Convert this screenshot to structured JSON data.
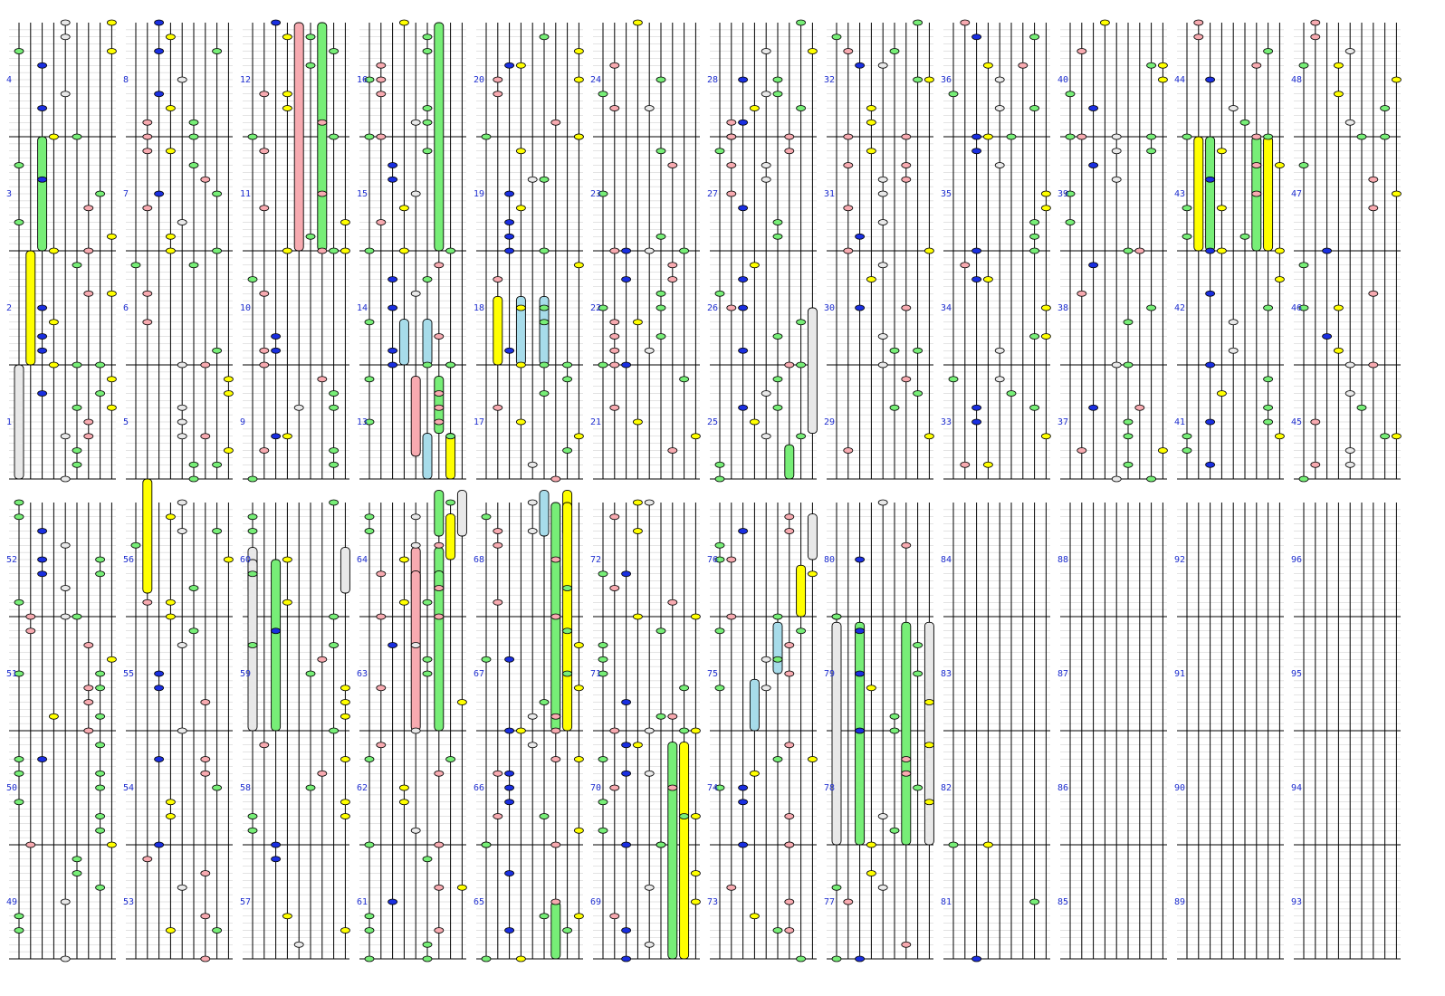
{
  "colors": {
    "background": "#ffffff",
    "line": "#000000",
    "grid": "#c8c8c8",
    "label": "#1f2fd0",
    "green": "#77ee77",
    "yellow": "#ffff00",
    "pink": "#f7aab0",
    "blue": "#1a2fe0",
    "gray": "#e8e8e8",
    "cyan": "#a7dcea"
  },
  "icons": {
    "note": "ellipse-note-icon",
    "hold": "rounded-bar-hold-icon"
  },
  "measure_labels": {
    "top": [
      [
        "4",
        "3",
        "2",
        "1"
      ],
      [
        "8",
        "7",
        "6",
        "5"
      ],
      [
        "12",
        "11",
        "10",
        "9"
      ],
      [
        "16",
        "15",
        "14",
        "13"
      ],
      [
        "20",
        "19",
        "18",
        "17"
      ],
      [
        "24",
        "23",
        "22",
        "21"
      ],
      [
        "28",
        "27",
        "26",
        "25"
      ],
      [
        "32",
        "31",
        "30",
        "29"
      ],
      [
        "36",
        "35",
        "34",
        "33"
      ],
      [
        "40",
        "39",
        "38",
        "37"
      ],
      [
        "44",
        "43",
        "42",
        "41"
      ],
      [
        "48",
        "47",
        "46",
        "45"
      ]
    ],
    "bottom": [
      [
        "52",
        "51",
        "50",
        "49"
      ],
      [
        "56",
        "55",
        "54",
        "53"
      ],
      [
        "60",
        "59",
        "58",
        "57"
      ],
      [
        "64",
        "63",
        "62",
        "61"
      ],
      [
        "68",
        "67",
        "66",
        "65"
      ],
      [
        "72",
        "71",
        "70",
        "69"
      ],
      [
        "76",
        "75",
        "74",
        "73"
      ],
      [
        "80",
        "79",
        "78",
        "77"
      ],
      [
        "84",
        "83",
        "82",
        "81"
      ],
      [
        "88",
        "87",
        "86",
        "85"
      ],
      [
        "92",
        "91",
        "90",
        "89"
      ],
      [
        "96",
        "95",
        "94",
        "93"
      ]
    ]
  },
  "holds": [
    {
      "col": 0,
      "row": 0,
      "lane": 2,
      "color": "green",
      "from": 1,
      "to": 2
    },
    {
      "col": 0,
      "row": 0,
      "lane": 1,
      "color": "yellow",
      "from": 2,
      "to": 3
    },
    {
      "col": 0,
      "row": 0,
      "lane": 0,
      "color": "gray",
      "from": 3,
      "to": 4
    },
    {
      "col": 1,
      "row": 0,
      "lane": 1,
      "color": "yellow",
      "from": 4,
      "to": 5
    },
    {
      "col": 2,
      "row": 0,
      "lane": 4,
      "color": "pink",
      "from": 0,
      "to": 2
    },
    {
      "col": 2,
      "row": 0,
      "lane": 6,
      "color": "green",
      "from": 0,
      "to": 2
    },
    {
      "col": 2,
      "row": 0,
      "lane": 0,
      "color": "gray",
      "from": 4.6,
      "to": 5
    },
    {
      "col": 2,
      "row": 0,
      "lane": 8,
      "color": "gray",
      "from": 4.6,
      "to": 5
    },
    {
      "col": 3,
      "row": 0,
      "lane": 6,
      "color": "green",
      "from": 0,
      "to": 2
    },
    {
      "col": 3,
      "row": 0,
      "lane": 3,
      "color": "cyan",
      "from": 2.6,
      "to": 3
    },
    {
      "col": 3,
      "row": 0,
      "lane": 5,
      "color": "cyan",
      "from": 2.6,
      "to": 3
    },
    {
      "col": 3,
      "row": 0,
      "lane": 4,
      "color": "pink",
      "from": 3.1,
      "to": 3.8
    },
    {
      "col": 3,
      "row": 0,
      "lane": 6,
      "color": "green",
      "from": 3.1,
      "to": 3.6
    },
    {
      "col": 3,
      "row": 0,
      "lane": 5,
      "color": "cyan",
      "from": 3.6,
      "to": 4
    },
    {
      "col": 3,
      "row": 0,
      "lane": 7,
      "color": "yellow",
      "from": 3.6,
      "to": 4
    },
    {
      "col": 3,
      "row": 0,
      "lane": 6,
      "color": "green",
      "from": 4.1,
      "to": 4.5
    },
    {
      "col": 3,
      "row": 0,
      "lane": 8,
      "color": "gray",
      "from": 4.1,
      "to": 4.5
    },
    {
      "col": 3,
      "row": 0,
      "lane": 4,
      "color": "pink",
      "from": 4.6,
      "to": 5
    },
    {
      "col": 3,
      "row": 0,
      "lane": 6,
      "color": "green",
      "from": 4.6,
      "to": 5
    },
    {
      "col": 4,
      "row": 0,
      "lane": 1,
      "color": "yellow",
      "from": 2.4,
      "to": 3
    },
    {
      "col": 4,
      "row": 0,
      "lane": 3,
      "color": "cyan",
      "from": 2.4,
      "to": 3
    },
    {
      "col": 4,
      "row": 0,
      "lane": 5,
      "color": "cyan",
      "from": 2.4,
      "to": 3
    },
    {
      "col": 4,
      "row": 0,
      "lane": 5,
      "color": "cyan",
      "from": 4.1,
      "to": 4.5
    },
    {
      "col": 4,
      "row": 0,
      "lane": 7,
      "color": "yellow",
      "from": 4.1,
      "to": 4.5
    },
    {
      "col": 4,
      "row": 0,
      "lane": 6,
      "color": "green",
      "from": 4.75,
      "to": 5
    },
    {
      "col": 6,
      "row": 0,
      "lane": 8,
      "color": "gray",
      "from": 2.5,
      "to": 3.6
    },
    {
      "col": 6,
      "row": 0,
      "lane": 6,
      "color": "green",
      "from": 3.7,
      "to": 4
    },
    {
      "col": 10,
      "row": 0,
      "lane": 1,
      "color": "yellow",
      "from": 1,
      "to": 2
    },
    {
      "col": 10,
      "row": 0,
      "lane": 2,
      "color": "green",
      "from": 1,
      "to": 2
    },
    {
      "col": 10,
      "row": 0,
      "lane": 6,
      "color": "green",
      "from": 1,
      "to": 2
    },
    {
      "col": 10,
      "row": 0,
      "lane": 7,
      "color": "yellow",
      "from": 1,
      "to": 2
    },
    {
      "col": 2,
      "row": 1,
      "lane": 0,
      "color": "gray",
      "from": 0.5,
      "to": 2
    },
    {
      "col": 2,
      "row": 1,
      "lane": 2,
      "color": "green",
      "from": 0.5,
      "to": 2
    },
    {
      "col": 3,
      "row": 1,
      "lane": 7,
      "color": "yellow",
      "from": 0.1,
      "to": 0.5
    },
    {
      "col": 3,
      "row": 1,
      "lane": 4,
      "color": "pink",
      "from": 0.6,
      "to": 2
    },
    {
      "col": 3,
      "row": 1,
      "lane": 6,
      "color": "green",
      "from": 0.6,
      "to": 2
    },
    {
      "col": 4,
      "row": 1,
      "lane": 6,
      "color": "green",
      "from": 0,
      "to": 2
    },
    {
      "col": 4,
      "row": 1,
      "lane": 7,
      "color": "yellow",
      "from": 0,
      "to": 2
    },
    {
      "col": 4,
      "row": 1,
      "lane": 6,
      "color": "green",
      "from": 3.5,
      "to": 4
    },
    {
      "col": 5,
      "row": 1,
      "lane": 6,
      "color": "green",
      "from": 2.1,
      "to": 4
    },
    {
      "col": 5,
      "row": 1,
      "lane": 7,
      "color": "yellow",
      "from": 2.1,
      "to": 4
    },
    {
      "col": 6,
      "row": 1,
      "lane": 8,
      "color": "gray",
      "from": 0.1,
      "to": 0.5
    },
    {
      "col": 6,
      "row": 1,
      "lane": 7,
      "color": "yellow",
      "from": 0.55,
      "to": 1
    },
    {
      "col": 6,
      "row": 1,
      "lane": 5,
      "color": "cyan",
      "from": 1.05,
      "to": 1.5
    },
    {
      "col": 6,
      "row": 1,
      "lane": 3,
      "color": "cyan",
      "from": 1.55,
      "to": 2
    },
    {
      "col": 7,
      "row": 1,
      "lane": 0,
      "color": "gray",
      "from": 1.05,
      "to": 3
    },
    {
      "col": 7,
      "row": 1,
      "lane": 2,
      "color": "green",
      "from": 1.05,
      "to": 3
    },
    {
      "col": 7,
      "row": 1,
      "lane": 6,
      "color": "green",
      "from": 1.05,
      "to": 3
    },
    {
      "col": 7,
      "row": 1,
      "lane": 8,
      "color": "gray",
      "from": 1.05,
      "to": 3
    }
  ]
}
